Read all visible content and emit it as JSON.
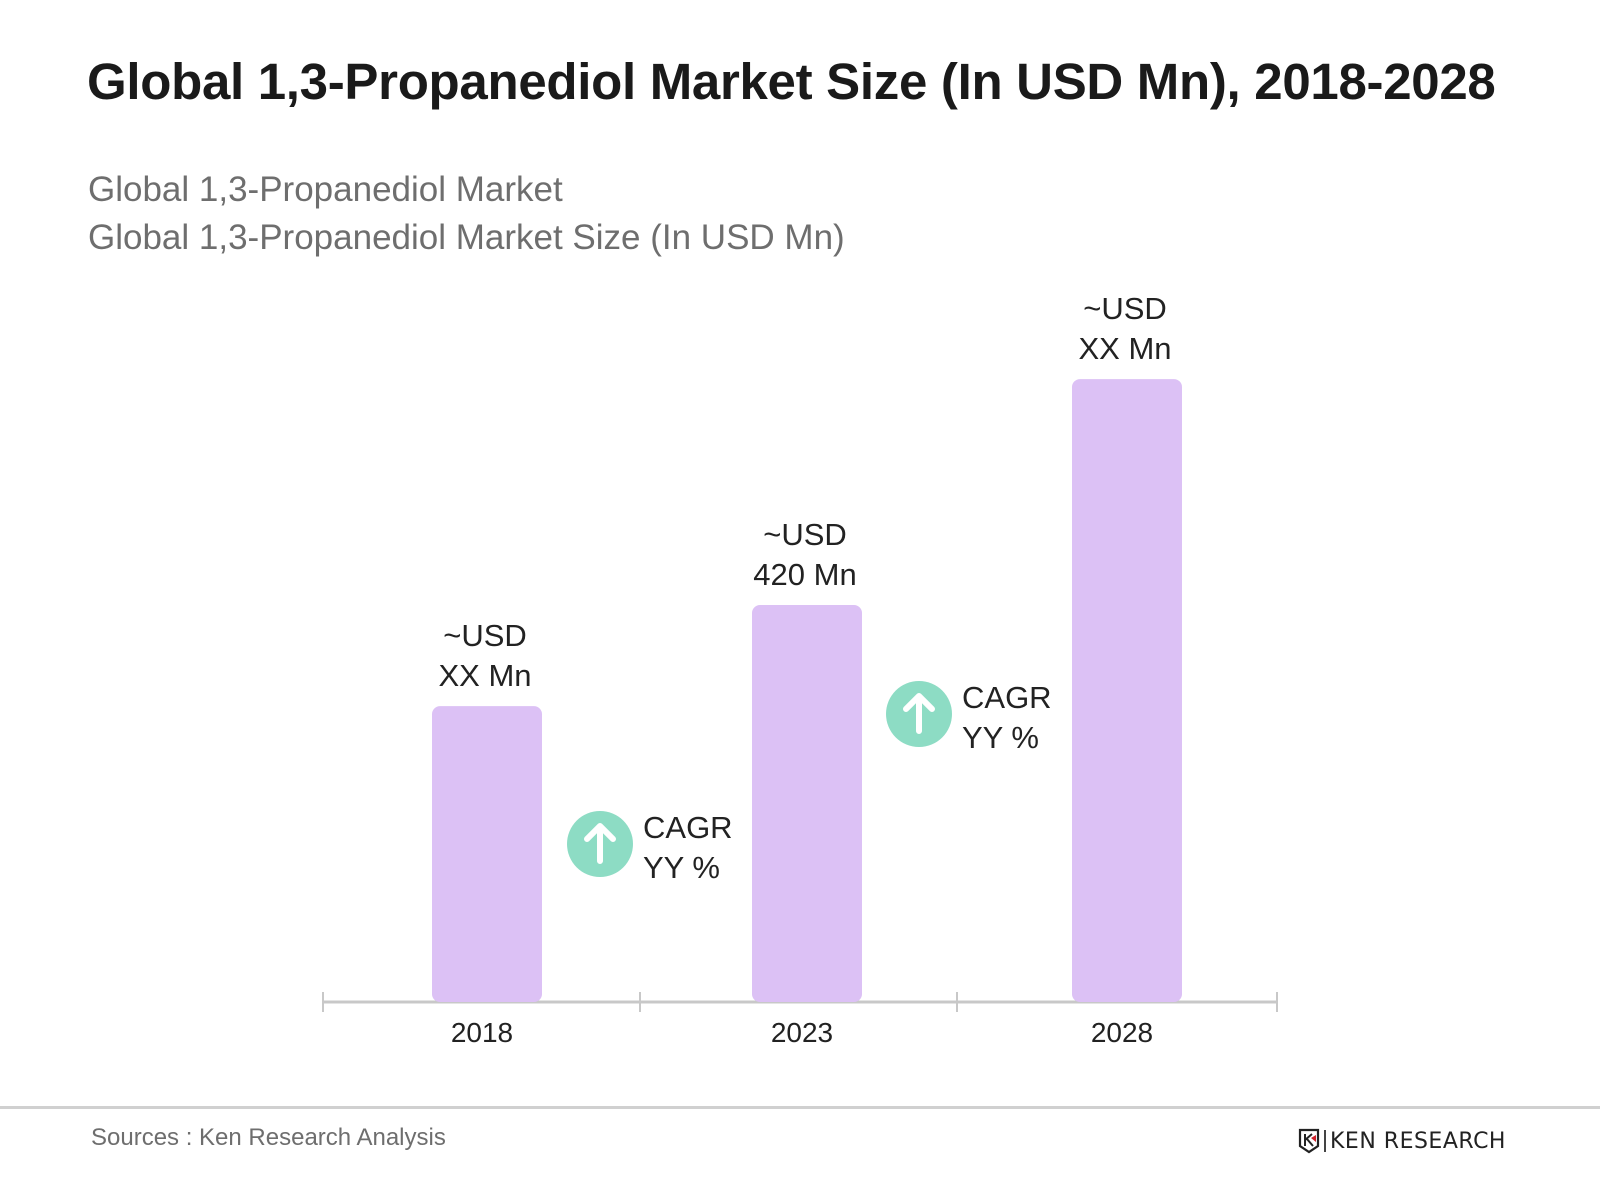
{
  "title": "Global 1,3-Propanediol Market Size (In USD Mn), 2018-2028",
  "subtitle_1": "Global 1,3-Propanediol Market",
  "subtitle_2": "Global 1,3-Propanediol Market Size (In USD Mn)",
  "source": "Sources : Ken Research Analysis",
  "logo_text": "KEN RESEARCH",
  "colors": {
    "bar": "#dcc1f5",
    "cagr_circle": "#8ddcc4",
    "axis": "#c8c8c8"
  },
  "chart_data": {
    "type": "bar",
    "categories": [
      "2018",
      "2023",
      "2028"
    ],
    "values": [
      313,
      420,
      659
    ],
    "data_labels": [
      [
        "~USD",
        "XX Mn"
      ],
      [
        "~USD",
        "420 Mn"
      ],
      [
        "~USD",
        "XX Mn"
      ]
    ],
    "annotations": [
      {
        "icon": "arrow-up-icon",
        "lines": [
          "CAGR",
          "YY %"
        ],
        "between": [
          "2018",
          "2023"
        ]
      },
      {
        "icon": "arrow-up-icon",
        "lines": [
          "CAGR",
          "YY %"
        ],
        "between": [
          "2023",
          "2028"
        ]
      }
    ],
    "grid": false,
    "legend": "none"
  }
}
